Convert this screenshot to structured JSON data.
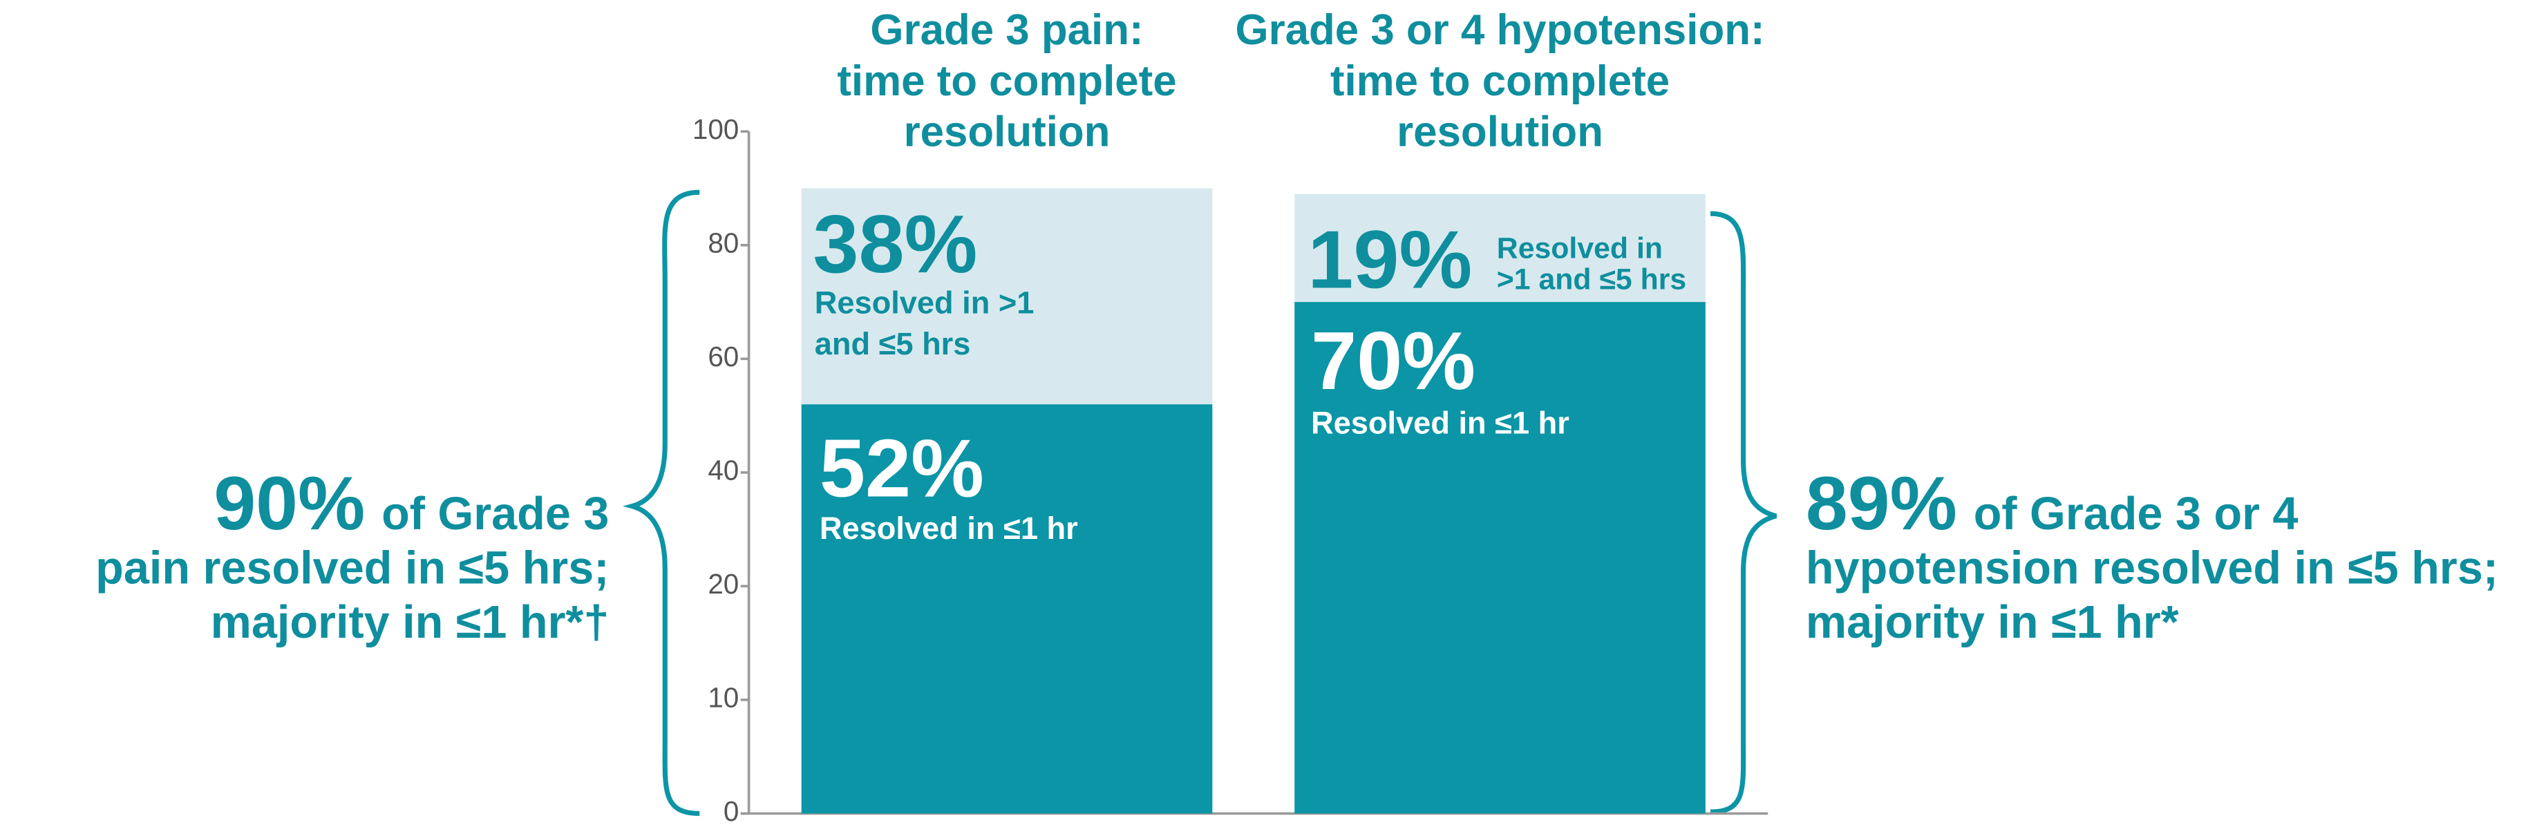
{
  "chart_data": {
    "type": "stacked_bar",
    "categories": [
      "Grade 3 pain:\ntime to complete\nresolution",
      "Grade 3 or 4 hypotension:\ntime to complete\nresolution"
    ],
    "series": [
      {
        "name": "Resolved in ≤1 hr",
        "color": "#0b95a6",
        "values": [
          52,
          70
        ],
        "value_labels": [
          "52%",
          "70%"
        ]
      },
      {
        "name": "Resolved in >1 and ≤5 hrs",
        "color": "#d7e9ee",
        "values": [
          38,
          19
        ],
        "value_labels": [
          "38%",
          "19%"
        ]
      }
    ],
    "ylim": [
      0,
      100
    ],
    "yticks": [
      0,
      10,
      20,
      40,
      60,
      80,
      100
    ],
    "annotations": [
      {
        "highlight": "90%",
        "lines": [
          "of Grade 3",
          "pain resolved in ≤5 hrs;",
          "majority in ≤1 hr*†"
        ]
      },
      {
        "highlight": "89%",
        "lines": [
          "of Grade 3 or 4",
          "hypotension resolved in ≤5 hrs;",
          "majority in ≤1 hr*"
        ]
      }
    ]
  }
}
